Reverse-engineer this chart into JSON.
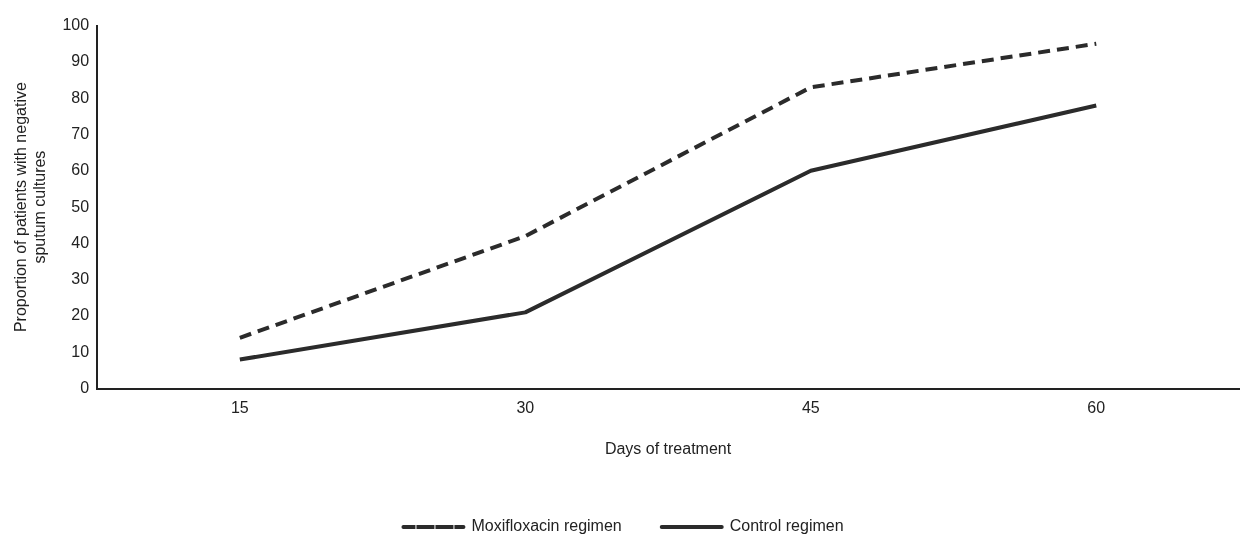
{
  "chart_data": {
    "type": "line",
    "xlabel": "Days of treatment",
    "ylabel": "Proportion of patients with negative sputum cultures",
    "categories": [
      "15",
      "30",
      "45",
      "60"
    ],
    "series": [
      {
        "name": "Moxifloxacin regimen",
        "color": "#2b2b2b",
        "line_style": "dashed",
        "values": [
          14,
          42,
          83,
          95
        ]
      },
      {
        "name": "Control regimen",
        "color": "#2b2b2b",
        "line_style": "solid",
        "values": [
          8,
          21,
          60,
          78
        ]
      }
    ],
    "ylim": [
      0,
      100
    ],
    "yticks": [
      0,
      10,
      20,
      30,
      40,
      50,
      60,
      70,
      80,
      90,
      100
    ],
    "grid": false,
    "legend": "bottom",
    "marker": "none"
  }
}
